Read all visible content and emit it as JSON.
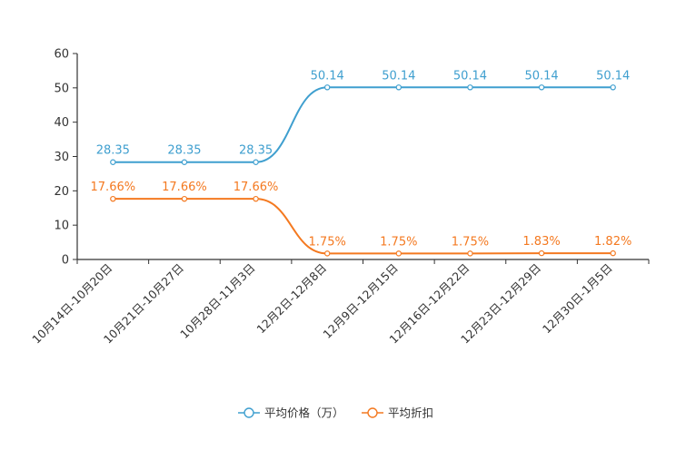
{
  "chart_data": {
    "type": "line",
    "categories": [
      "10月14日-10月20日",
      "10月21日-10月27日",
      "10月28日-11月3日",
      "12月2日-12月8日",
      "12月9日-12月15日",
      "12月16日-12月22日",
      "12月23日-12月29日",
      "12月30日-1月5日"
    ],
    "series": [
      {
        "name": "平均价格（万）",
        "color": "#3f9fcf",
        "values": [
          28.35,
          28.35,
          28.35,
          50.14,
          50.14,
          50.14,
          50.14,
          50.14
        ],
        "labels": [
          "28.35",
          "28.35",
          "28.35",
          "50.14",
          "50.14",
          "50.14",
          "50.14",
          "50.14"
        ]
      },
      {
        "name": "平均折扣",
        "color": "#f47920",
        "values": [
          17.66,
          17.66,
          17.66,
          1.75,
          1.75,
          1.75,
          1.83,
          1.82
        ],
        "labels": [
          "17.66%",
          "17.66%",
          "17.66%",
          "1.75%",
          "1.75%",
          "1.75%",
          "1.83%",
          "1.82%"
        ]
      }
    ],
    "ylim": [
      0,
      60
    ],
    "yticks": [
      0,
      10,
      20,
      30,
      40,
      50,
      60
    ],
    "title": "",
    "xlabel": "",
    "ylabel": "",
    "grid": false,
    "legend": "bottom-center"
  }
}
